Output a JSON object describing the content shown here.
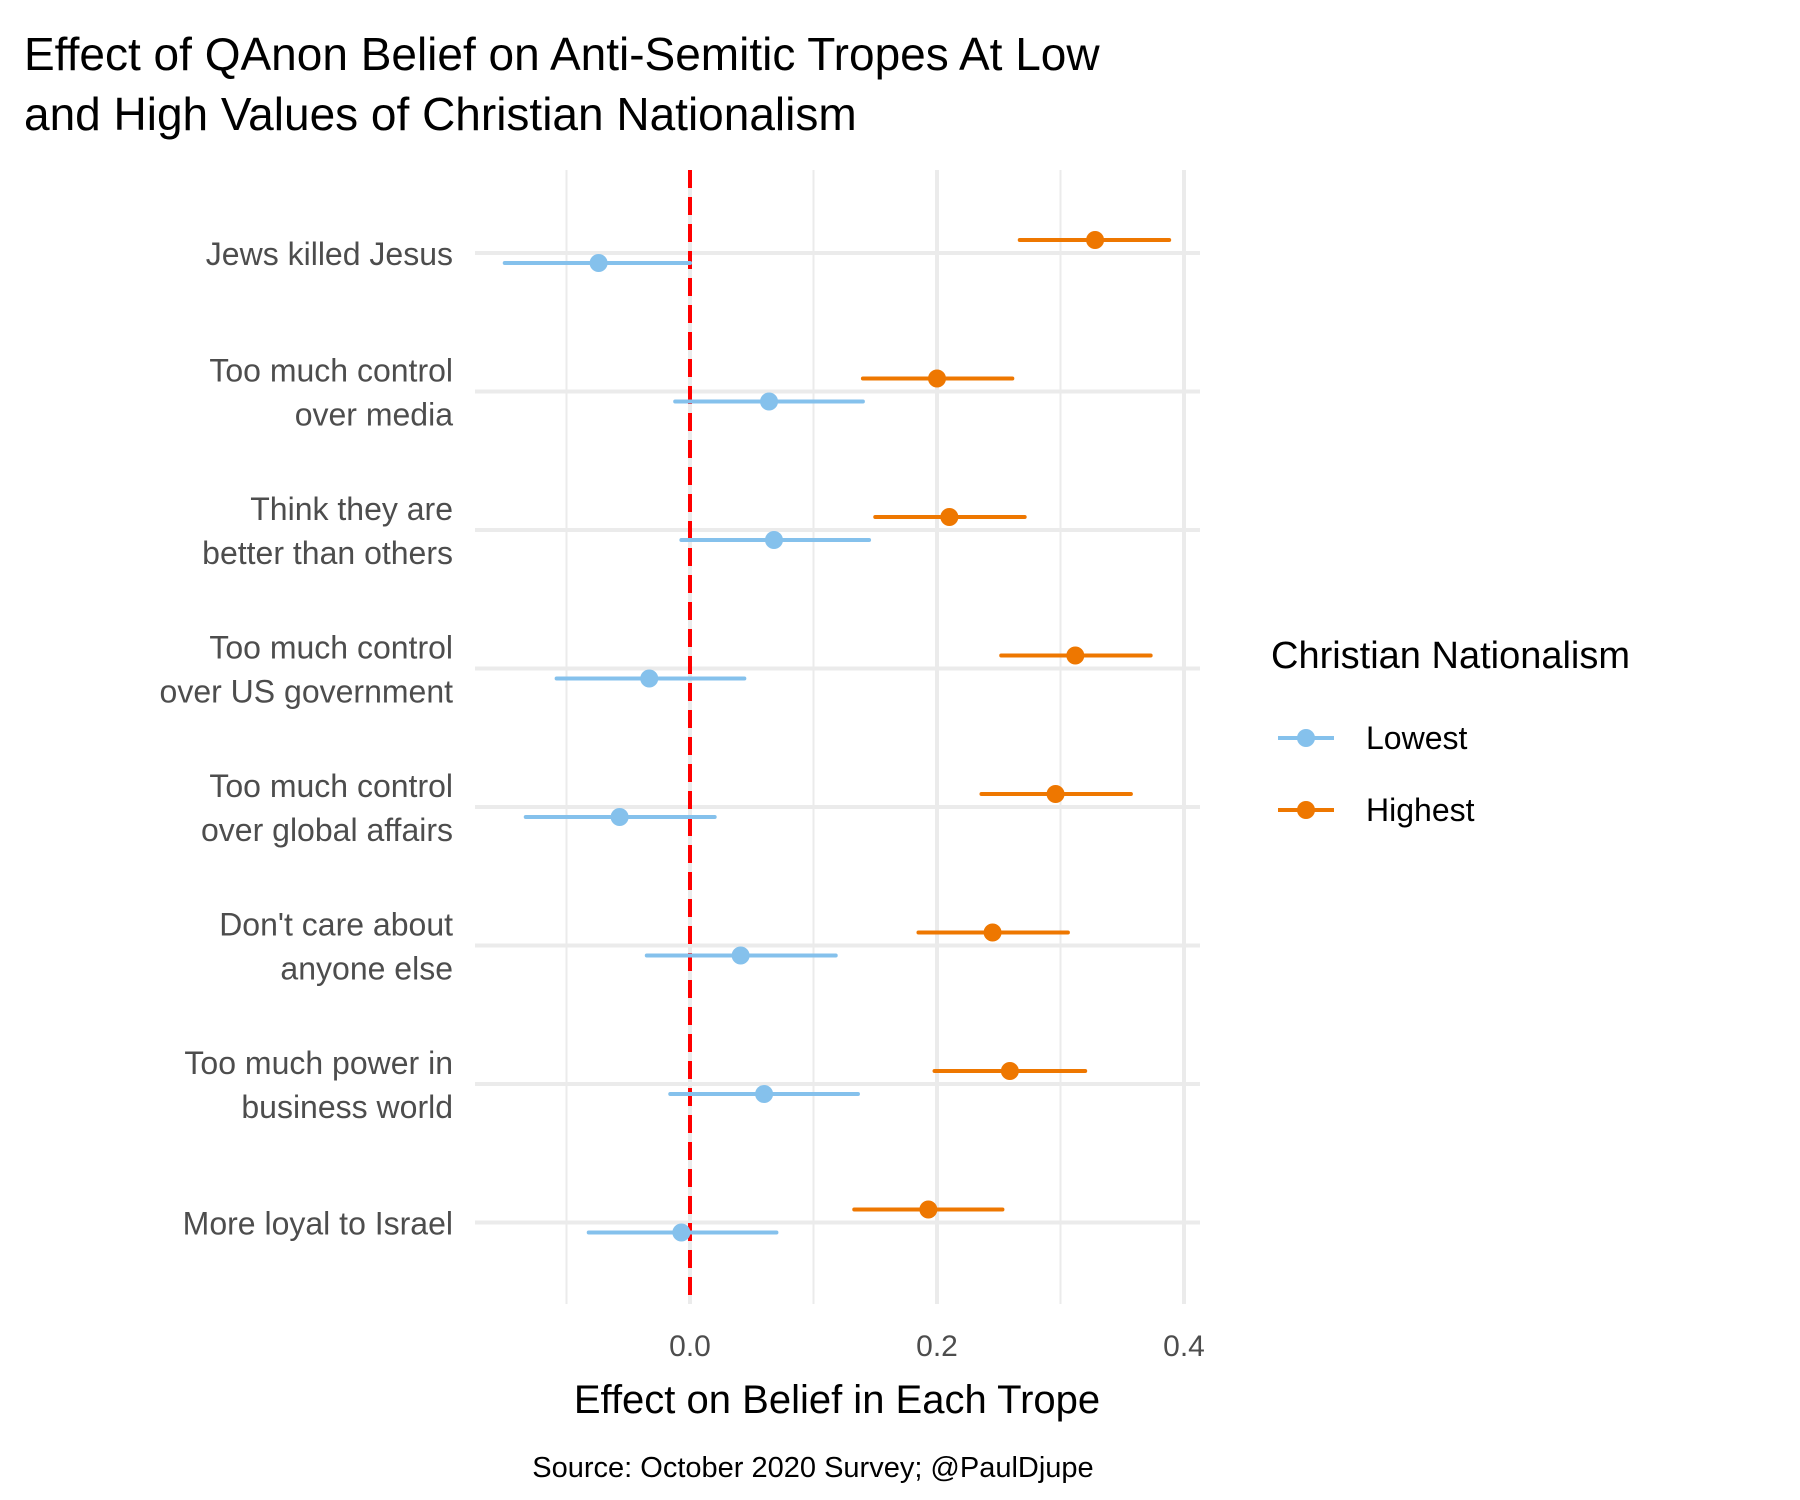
{
  "chart_data": {
    "type": "scatter",
    "subtype": "point-range (coefficient plot)",
    "title_lines": [
      "Effect of QAnon Belief on Anti-Semitic Tropes At Low",
      "and High Values of Christian Nationalism"
    ],
    "xlabel": "Effect on Belief in Each Trope",
    "ylabel": "",
    "caption": "Source: October 2020 Survey; @PaulDjupe",
    "xlim": [
      -0.175,
      0.41
    ],
    "x_ticks": [
      "0.0",
      "0.2",
      "0.4"
    ],
    "x_tick_values": [
      0.0,
      0.2,
      0.4
    ],
    "x_minor_gridlines": [
      -0.1,
      0.1,
      0.3
    ],
    "reference_line": {
      "x": 0,
      "style": "dashed",
      "color": "#ff0000"
    },
    "grid": true,
    "categories": [
      [
        "Jews killed Jesus"
      ],
      [
        "Too much control",
        "over media"
      ],
      [
        "Think they are",
        "better than others"
      ],
      [
        "Too much control",
        "over US government"
      ],
      [
        "Too much control",
        "over global affairs"
      ],
      [
        "Don't care about",
        "anyone else"
      ],
      [
        "Too much power in",
        "business world"
      ],
      [
        "More loyal to Israel"
      ]
    ],
    "legend": {
      "title": "Christian Nationalism",
      "placement": "right"
    },
    "series": [
      {
        "name": "Lowest",
        "color": "#85c1ec",
        "estimate": [
          -0.074,
          0.064,
          0.068,
          -0.033,
          -0.057,
          0.041,
          0.06,
          -0.007
        ],
        "lower": [
          -0.15,
          -0.012,
          -0.007,
          -0.108,
          -0.133,
          -0.035,
          -0.016,
          -0.082
        ],
        "upper": [
          0.0,
          0.14,
          0.145,
          0.044,
          0.02,
          0.118,
          0.136,
          0.07
        ]
      },
      {
        "name": "Highest",
        "color": "#ee7700",
        "estimate": [
          0.328,
          0.2,
          0.21,
          0.312,
          0.296,
          0.245,
          0.259,
          0.193
        ],
        "lower": [
          0.267,
          0.14,
          0.15,
          0.252,
          0.236,
          0.185,
          0.198,
          0.133
        ],
        "upper": [
          0.388,
          0.261,
          0.271,
          0.373,
          0.357,
          0.306,
          0.32,
          0.253
        ]
      }
    ]
  }
}
